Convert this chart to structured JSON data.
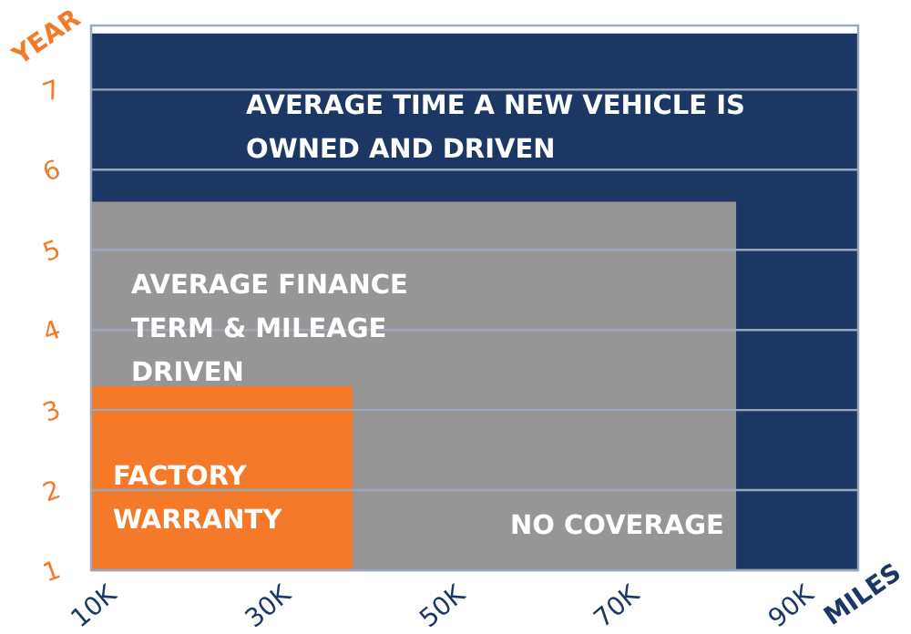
{
  "chart_data": {
    "type": "area",
    "xlabel": "MILES",
    "ylabel": "YEAR",
    "xlim": [
      10,
      98
    ],
    "xticks": [
      {
        "value": 10,
        "label": "10K"
      },
      {
        "value": 30,
        "label": "30K"
      },
      {
        "value": 50,
        "label": "50K"
      },
      {
        "value": 70,
        "label": "70K"
      },
      {
        "value": 90,
        "label": "90K"
      }
    ],
    "ylim": [
      1,
      7.8
    ],
    "yticks": [
      1,
      2,
      3,
      4,
      5,
      6,
      7
    ],
    "grid": "y",
    "series": [
      {
        "name": "AVERAGE TIME A NEW VEHICLE IS OWNED AND DRIVEN",
        "color": "#1c3764",
        "x": [
          10,
          98
        ],
        "values": [
          7.7,
          7.7
        ]
      },
      {
        "name": "AVERAGE FINANCE TERM & MILEAGE DRIVEN",
        "color": "#979596",
        "x": [
          10,
          84
        ],
        "values": [
          5.6,
          5.6
        ]
      },
      {
        "name": "FACTORY WARRANTY",
        "color": "#f47929",
        "x": [
          10,
          40
        ],
        "values": [
          3.3,
          3.3
        ]
      }
    ],
    "annotations": [
      "NO COVERAGE"
    ]
  }
}
